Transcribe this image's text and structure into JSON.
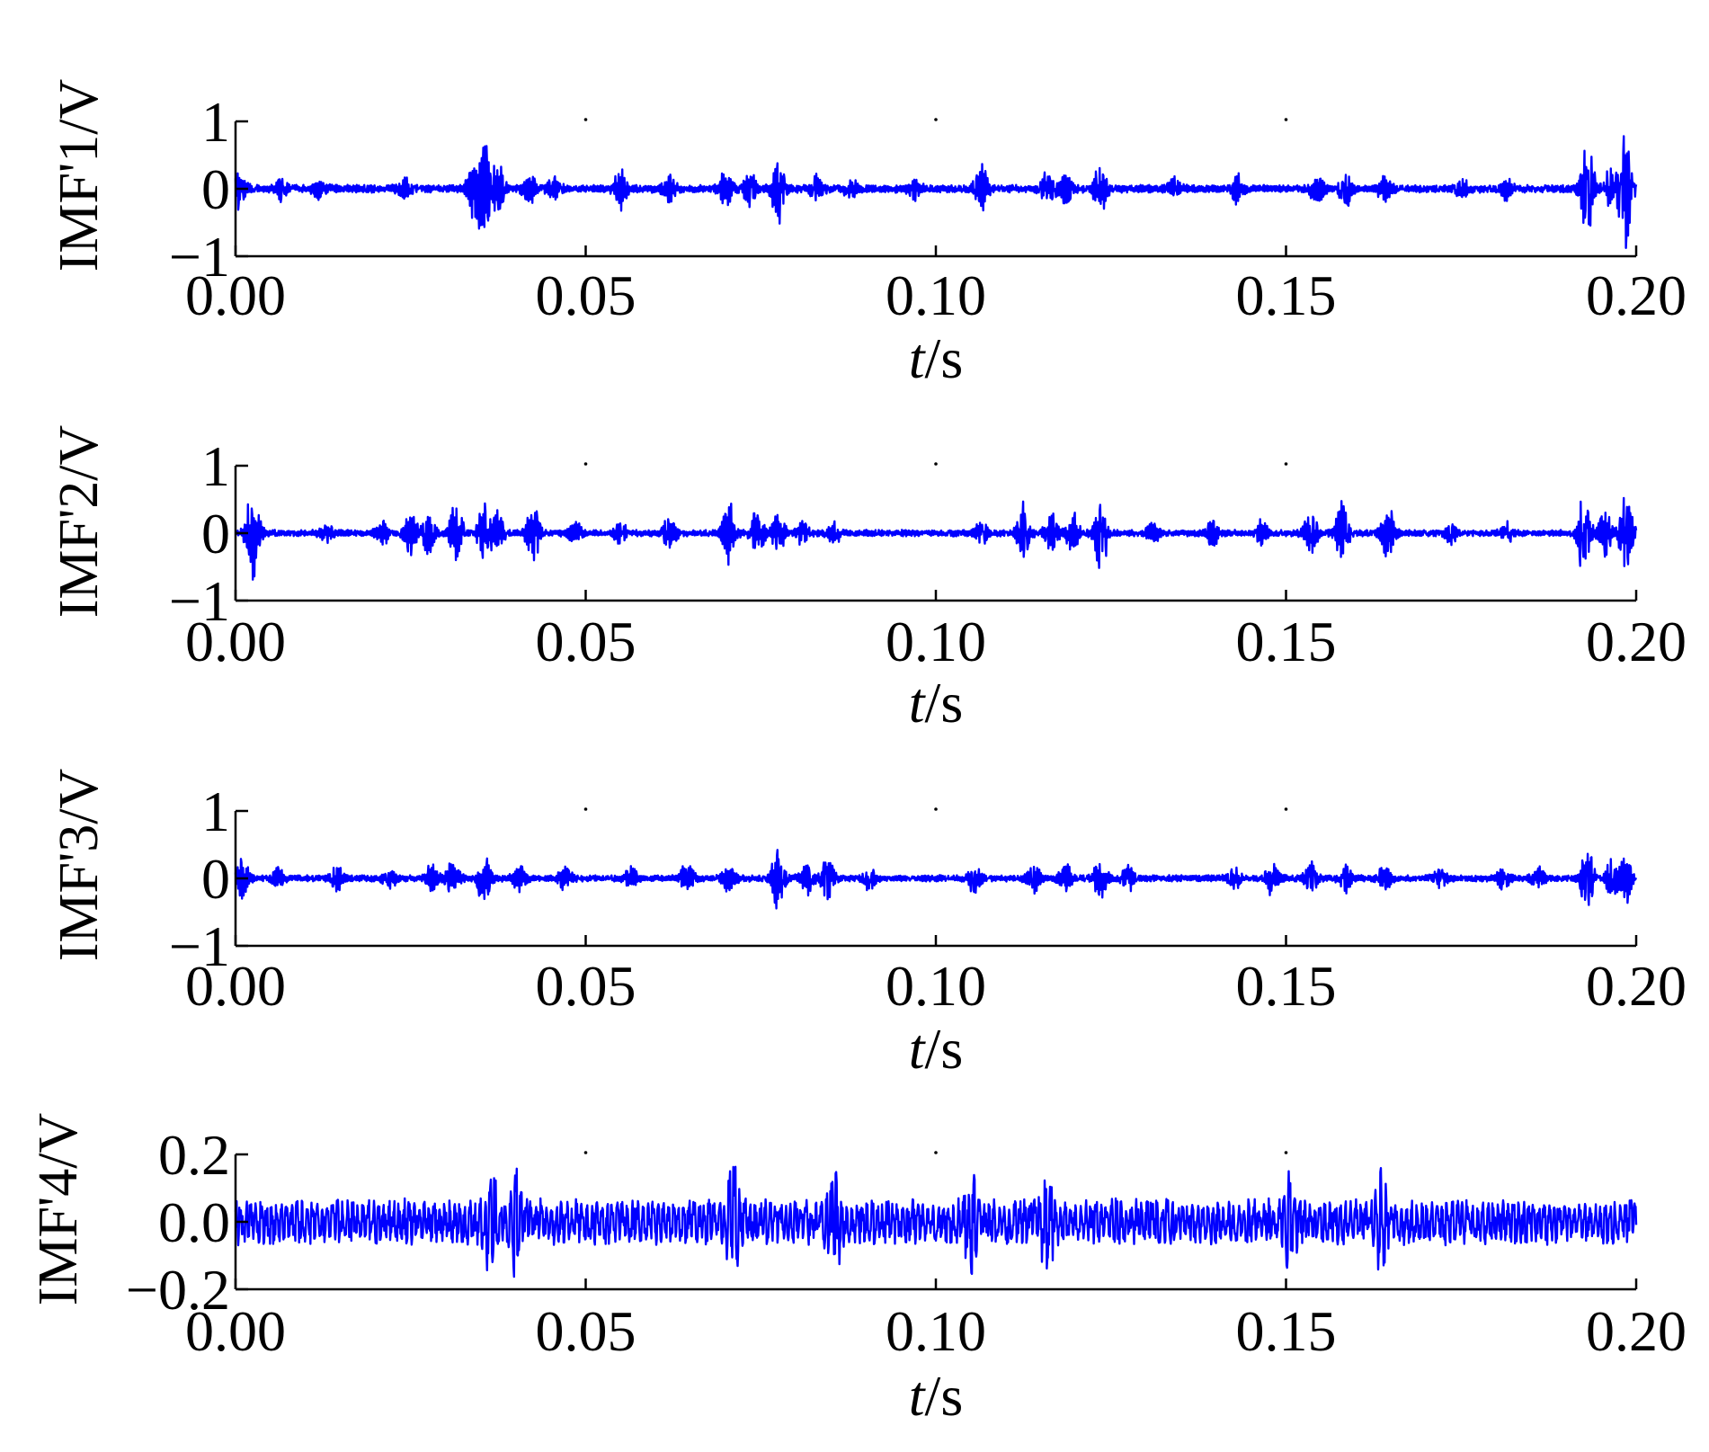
{
  "chart_data": [
    {
      "type": "line",
      "ylabel": "IMF'1/V",
      "xlabel_italic": "t",
      "xlabel_unit": "/s",
      "xlim": [
        0.0,
        0.2
      ],
      "ylim": [
        -1,
        1
      ],
      "x_ticks": [
        "0.00",
        "0.05",
        "0.10",
        "0.15",
        "0.20"
      ],
      "y_ticks": [
        "1",
        "0",
        "−1"
      ],
      "line_color": "#0000ff",
      "grid": false,
      "series": [
        {
          "baseline_amp": 0.06,
          "bursts": [
            {
              "t": 0.0005,
              "amp": 0.3
            },
            {
              "t": 0.0065,
              "amp": 0.15
            },
            {
              "t": 0.012,
              "amp": 0.12
            },
            {
              "t": 0.024,
              "amp": 0.15
            },
            {
              "t": 0.034,
              "amp": 0.45
            },
            {
              "t": 0.0355,
              "amp": 0.85
            },
            {
              "t": 0.0375,
              "amp": 0.35
            },
            {
              "t": 0.042,
              "amp": 0.25
            },
            {
              "t": 0.0455,
              "amp": 0.2
            },
            {
              "t": 0.055,
              "amp": 0.3
            },
            {
              "t": 0.062,
              "amp": 0.2
            },
            {
              "t": 0.07,
              "amp": 0.25
            },
            {
              "t": 0.0735,
              "amp": 0.25
            },
            {
              "t": 0.0775,
              "amp": 0.55
            },
            {
              "t": 0.083,
              "amp": 0.2
            },
            {
              "t": 0.088,
              "amp": 0.18
            },
            {
              "t": 0.097,
              "amp": 0.15
            },
            {
              "t": 0.1065,
              "amp": 0.35
            },
            {
              "t": 0.116,
              "amp": 0.3
            },
            {
              "t": 0.1185,
              "amp": 0.2
            },
            {
              "t": 0.1235,
              "amp": 0.4
            },
            {
              "t": 0.134,
              "amp": 0.15
            },
            {
              "t": 0.143,
              "amp": 0.2
            },
            {
              "t": 0.1545,
              "amp": 0.25
            },
            {
              "t": 0.1585,
              "amp": 0.3
            },
            {
              "t": 0.164,
              "amp": 0.2
            },
            {
              "t": 0.175,
              "amp": 0.15
            },
            {
              "t": 0.1815,
              "amp": 0.15
            },
            {
              "t": 0.193,
              "amp": 0.85
            },
            {
              "t": 0.1965,
              "amp": 0.35
            },
            {
              "t": 0.1985,
              "amp": 0.85
            }
          ]
        }
      ]
    },
    {
      "type": "line",
      "ylabel": "IMF'2/V",
      "xlabel_italic": "t",
      "xlabel_unit": "/s",
      "xlim": [
        0.0,
        0.2
      ],
      "ylim": [
        -1,
        1
      ],
      "x_ticks": [
        "0.00",
        "0.05",
        "0.10",
        "0.15",
        "0.20"
      ],
      "y_ticks": [
        "1",
        "0",
        "−1"
      ],
      "line_color": "#0000ff",
      "grid": false,
      "series": [
        {
          "baseline_amp": 0.05,
          "bursts": [
            {
              "t": 0.0025,
              "amp": 0.8
            },
            {
              "t": 0.013,
              "amp": 0.12
            },
            {
              "t": 0.021,
              "amp": 0.15
            },
            {
              "t": 0.025,
              "amp": 0.3
            },
            {
              "t": 0.0275,
              "amp": 0.3
            },
            {
              "t": 0.0315,
              "amp": 0.5
            },
            {
              "t": 0.0355,
              "amp": 0.5
            },
            {
              "t": 0.0375,
              "amp": 0.3
            },
            {
              "t": 0.0425,
              "amp": 0.5
            },
            {
              "t": 0.0485,
              "amp": 0.15
            },
            {
              "t": 0.055,
              "amp": 0.15
            },
            {
              "t": 0.062,
              "amp": 0.25
            },
            {
              "t": 0.0705,
              "amp": 0.5
            },
            {
              "t": 0.0745,
              "amp": 0.35
            },
            {
              "t": 0.0775,
              "amp": 0.3
            },
            {
              "t": 0.081,
              "amp": 0.2
            },
            {
              "t": 0.0855,
              "amp": 0.15
            },
            {
              "t": 0.1065,
              "amp": 0.15
            },
            {
              "t": 0.1125,
              "amp": 0.45
            },
            {
              "t": 0.1165,
              "amp": 0.3
            },
            {
              "t": 0.1195,
              "amp": 0.3
            },
            {
              "t": 0.1235,
              "amp": 0.65
            },
            {
              "t": 0.131,
              "amp": 0.15
            },
            {
              "t": 0.1395,
              "amp": 0.2
            },
            {
              "t": 0.1465,
              "amp": 0.2
            },
            {
              "t": 0.1535,
              "amp": 0.35
            },
            {
              "t": 0.158,
              "amp": 0.55
            },
            {
              "t": 0.1645,
              "amp": 0.45
            },
            {
              "t": 0.1735,
              "amp": 0.15
            },
            {
              "t": 0.1815,
              "amp": 0.15
            },
            {
              "t": 0.1925,
              "amp": 0.65
            },
            {
              "t": 0.1955,
              "amp": 0.35
            },
            {
              "t": 0.1985,
              "amp": 0.65
            }
          ]
        }
      ]
    },
    {
      "type": "line",
      "ylabel": "IMF'3/V",
      "xlabel_italic": "t",
      "xlabel_unit": "/s",
      "xlim": [
        0.0,
        0.2
      ],
      "ylim": [
        -1,
        1
      ],
      "x_ticks": [
        "0.00",
        "0.05",
        "0.10",
        "0.15",
        "0.20"
      ],
      "y_ticks": [
        "1",
        "0",
        "−1"
      ],
      "line_color": "#0000ff",
      "grid": false,
      "series": [
        {
          "baseline_amp": 0.05,
          "bursts": [
            {
              "t": 0.001,
              "amp": 0.3
            },
            {
              "t": 0.006,
              "amp": 0.15
            },
            {
              "t": 0.0145,
              "amp": 0.18
            },
            {
              "t": 0.022,
              "amp": 0.12
            },
            {
              "t": 0.028,
              "amp": 0.2
            },
            {
              "t": 0.031,
              "amp": 0.25
            },
            {
              "t": 0.0355,
              "amp": 0.45
            },
            {
              "t": 0.0405,
              "amp": 0.2
            },
            {
              "t": 0.047,
              "amp": 0.18
            },
            {
              "t": 0.0565,
              "amp": 0.15
            },
            {
              "t": 0.0645,
              "amp": 0.25
            },
            {
              "t": 0.0705,
              "amp": 0.2
            },
            {
              "t": 0.0775,
              "amp": 0.45
            },
            {
              "t": 0.0815,
              "amp": 0.25
            },
            {
              "t": 0.0845,
              "amp": 0.3
            },
            {
              "t": 0.0905,
              "amp": 0.15
            },
            {
              "t": 0.1055,
              "amp": 0.2
            },
            {
              "t": 0.114,
              "amp": 0.2
            },
            {
              "t": 0.1185,
              "amp": 0.2
            },
            {
              "t": 0.1235,
              "amp": 0.35
            },
            {
              "t": 0.1275,
              "amp": 0.2
            },
            {
              "t": 0.1425,
              "amp": 0.18
            },
            {
              "t": 0.148,
              "amp": 0.25
            },
            {
              "t": 0.1535,
              "amp": 0.25
            },
            {
              "t": 0.1585,
              "amp": 0.2
            },
            {
              "t": 0.164,
              "amp": 0.2
            },
            {
              "t": 0.172,
              "amp": 0.15
            },
            {
              "t": 0.181,
              "amp": 0.15
            },
            {
              "t": 0.186,
              "amp": 0.15
            },
            {
              "t": 0.193,
              "amp": 0.5
            },
            {
              "t": 0.1965,
              "amp": 0.25
            },
            {
              "t": 0.1985,
              "amp": 0.4
            }
          ]
        }
      ]
    },
    {
      "type": "line",
      "ylabel": "IMF'4/V",
      "xlabel_italic": "t",
      "xlabel_unit": "/s",
      "xlim": [
        0.0,
        0.2
      ],
      "ylim": [
        -0.2,
        0.2
      ],
      "x_ticks": [
        "0.00",
        "0.05",
        "0.10",
        "0.15",
        "0.20"
      ],
      "y_ticks": [
        "0.2",
        "0.0",
        "−0.2"
      ],
      "line_color": "#0000ff",
      "grid": false,
      "series": [
        {
          "baseline_amp": 0.07,
          "bursts": [
            {
              "t": 0.0365,
              "amp": 0.12
            },
            {
              "t": 0.04,
              "amp": 0.12
            },
            {
              "t": 0.071,
              "amp": 0.12
            },
            {
              "t": 0.0855,
              "amp": 0.12
            },
            {
              "t": 0.105,
              "amp": 0.12
            },
            {
              "t": 0.116,
              "amp": 0.14
            },
            {
              "t": 0.1505,
              "amp": 0.1
            },
            {
              "t": 0.1635,
              "amp": 0.1
            }
          ]
        }
      ]
    }
  ]
}
